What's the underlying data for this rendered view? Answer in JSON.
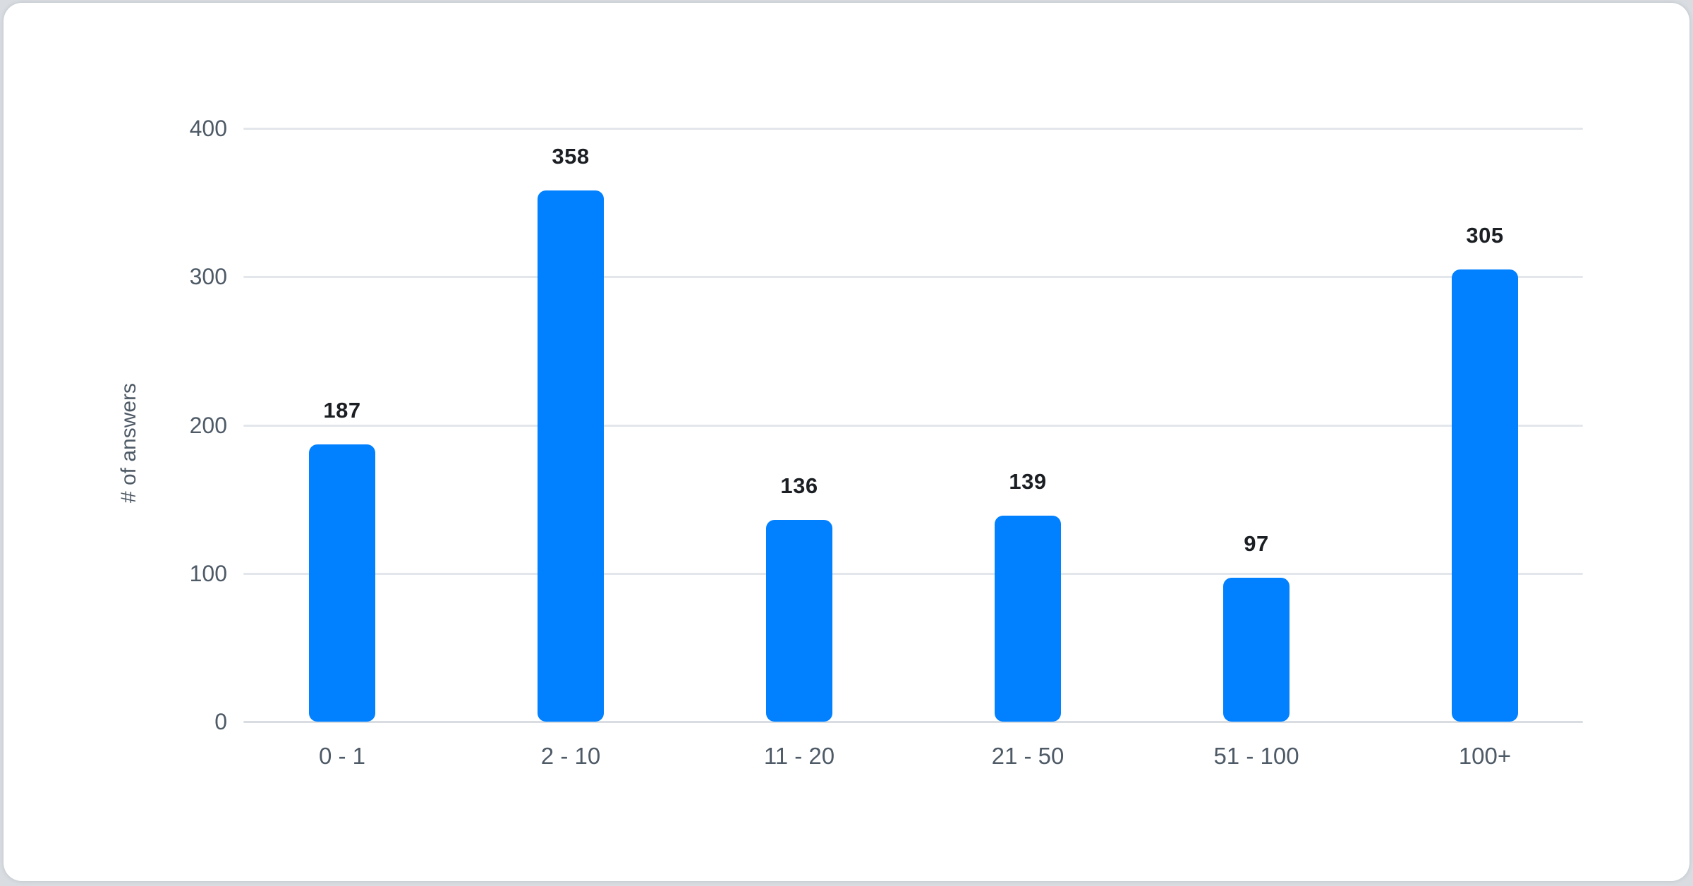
{
  "page": {
    "background_color": "#d9dde2",
    "card_color": "#ffffff"
  },
  "chart_data": {
    "type": "bar",
    "title": "",
    "categories": [
      "0 - 1",
      "2 - 10",
      "11 - 20",
      "21 - 50",
      "51 - 100",
      "100+"
    ],
    "values": [
      187,
      358,
      136,
      139,
      97,
      305
    ],
    "value_labels": [
      "187",
      "358",
      "136",
      "139",
      "97",
      "305"
    ],
    "xlabel": "",
    "ylabel": "# of answers",
    "ylim": [
      0,
      400
    ],
    "yticks": [
      0,
      100,
      200,
      300,
      400
    ],
    "grid": "horizontal",
    "legend": "none",
    "bar_color": "#0180ff",
    "grid_color": "#e3e6eb",
    "baseline_color": "#d9dde1",
    "axis_text_color": "#4e5a66",
    "value_label_color": "#1b1f23"
  }
}
